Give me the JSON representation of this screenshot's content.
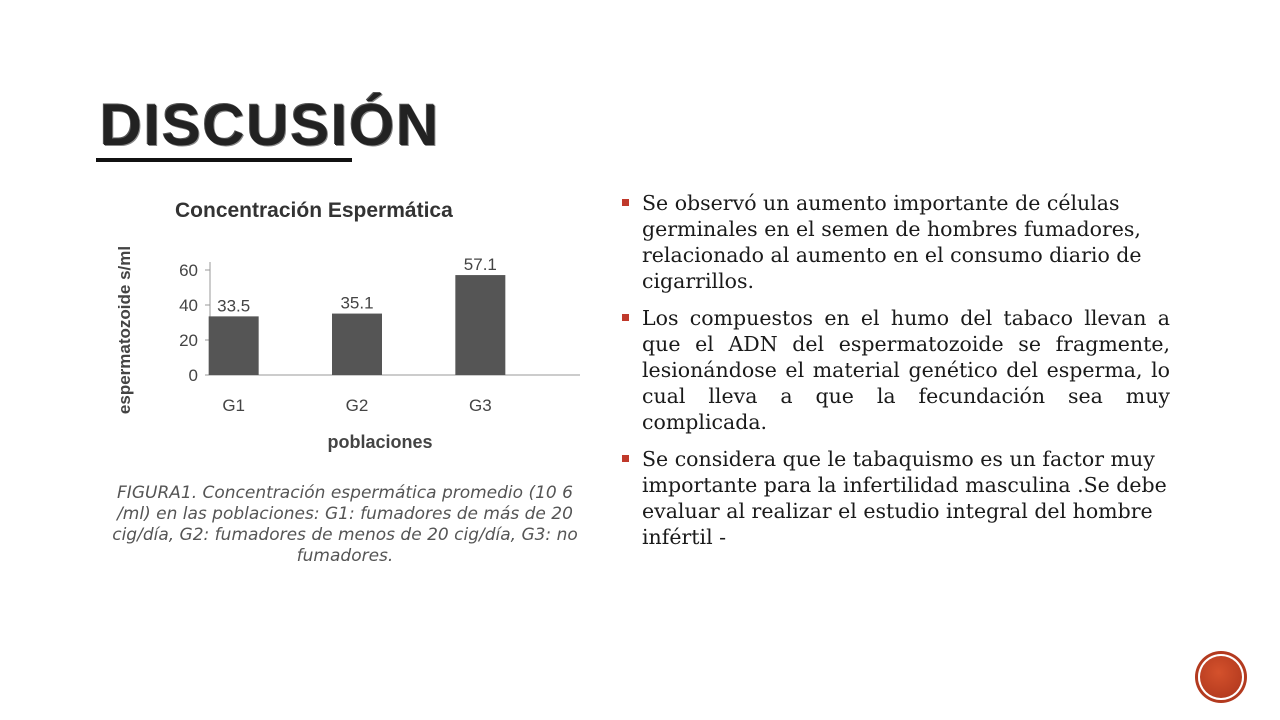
{
  "slide": {
    "title": "Discusión"
  },
  "chart": {
    "caption": "FIGURA1. Concentración espermática promedio (10 6 /ml) en las poblaciones: G1: fumadores de más de 20 cig/día, G2: fumadores de menos de 20 cig/día, G3: no fumadores."
  },
  "chart_data": {
    "type": "bar",
    "title": "Concentración Espermática",
    "xlabel": "poblaciones",
    "ylabel": "espermatozoide s/ml",
    "categories": [
      "G1",
      "G2",
      "G3"
    ],
    "values": [
      33.5,
      35.1,
      57.1
    ],
    "data_labels": [
      "33.5",
      "35.1",
      "57.1"
    ],
    "yticks": [
      "0",
      "20",
      "40",
      "60"
    ],
    "ytick_values": [
      0,
      20,
      40,
      60
    ],
    "ylim": [
      0,
      60
    ],
    "grid": false,
    "bar_color": "#555555"
  },
  "bullets": [
    {
      "text": "Se observó un aumento importante de células germinales en el semen de hombres fumadores, relacionado al aumento en el consumo diario de cigarrillos."
    },
    {
      "text": "Los compuestos en el humo del tabaco llevan a que el ADN del espermatozoide se fragmente, lesionándose el material genético del esperma, lo cual lleva a que la fecundación sea muy complicada."
    },
    {
      "text": "Se considera que le tabaquismo  es un factor muy importante para la infertilidad masculina .Se debe evaluar al realizar el estudio integral del hombre infértil -"
    }
  ],
  "colors": {
    "accent": "#c0392b",
    "bar": "#555555"
  }
}
